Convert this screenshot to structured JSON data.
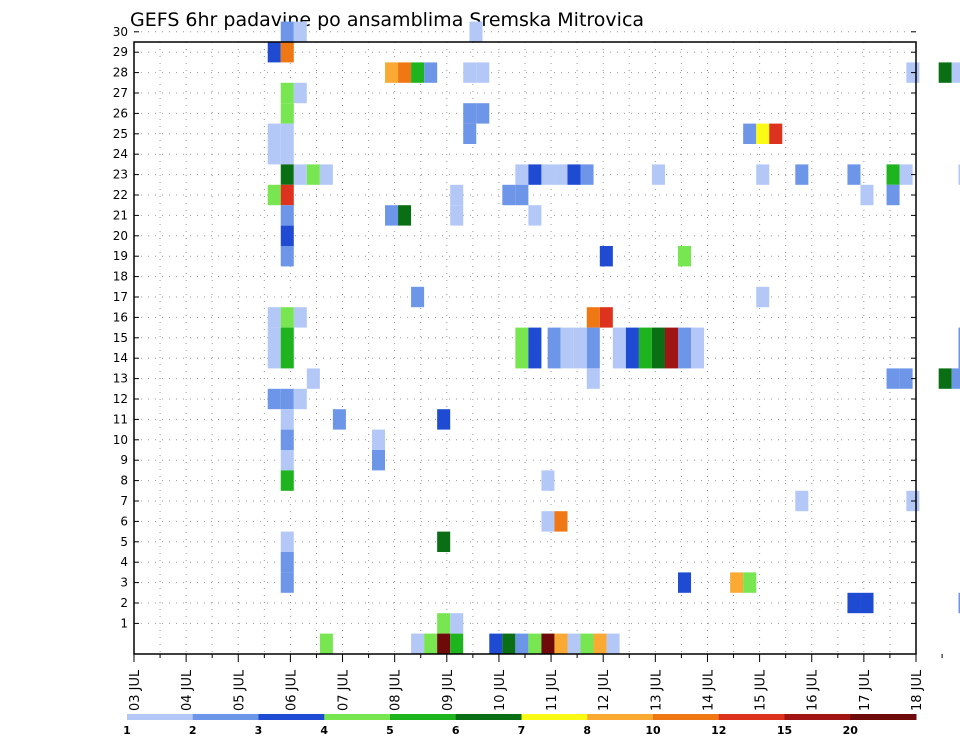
{
  "chart_data": {
    "type": "heatmap",
    "title": "GEFS 6hr padavine po ansamblima Sremska Mitrovica",
    "xlabel": "",
    "ylabel": "",
    "y_ticks": [
      "1",
      "2",
      "3",
      "4",
      "5",
      "6",
      "7",
      "8",
      "9",
      "10",
      "11",
      "12",
      "13",
      "14",
      "15",
      "16",
      "17",
      "18",
      "19",
      "20",
      "21",
      "22",
      "23",
      "24",
      "25",
      "26",
      "27",
      "28",
      "29",
      "30"
    ],
    "x_ticks": [
      "03 JUL",
      "04 JUL",
      "05 JUL",
      "06 JUL",
      "07 JUL",
      "08 JUL",
      "09 JUL",
      "10 JUL",
      "11 JUL",
      "12 JUL",
      "13 JUL",
      "14 JUL",
      "15 JUL",
      "16 JUL",
      "17 JUL",
      "18 JUL"
    ],
    "x_range_days": [
      0,
      15
    ],
    "y_range": [
      0,
      30
    ],
    "grid": true,
    "legend": {
      "placement": "bottom",
      "colors": [
        "#b4c8f8",
        "#6e96e8",
        "#1e4bd2",
        "#78e650",
        "#1eb41e",
        "#0a6e14",
        "#fafa14",
        "#faaa32",
        "#f07814",
        "#dc321e",
        "#a01414",
        "#6e0a0a"
      ],
      "labels": [
        "1",
        "2",
        "3",
        "4",
        "5",
        "6",
        "7",
        "8",
        "10",
        "12",
        "15",
        "20"
      ]
    },
    "points": [
      {
        "day": 2.94,
        "m": 30,
        "c": 2
      },
      {
        "day": 3.19,
        "m": 30,
        "c": 1
      },
      {
        "day": 6.56,
        "m": 30,
        "c": 1
      },
      {
        "day": 2.69,
        "m": 29,
        "c": 3
      },
      {
        "day": 2.94,
        "m": 29,
        "c": 9
      },
      {
        "day": 4.94,
        "m": 28,
        "c": 8
      },
      {
        "day": 5.19,
        "m": 28,
        "c": 9
      },
      {
        "day": 5.44,
        "m": 28,
        "c": 5
      },
      {
        "day": 5.69,
        "m": 28,
        "c": 2
      },
      {
        "day": 6.44,
        "m": 28,
        "c": 1
      },
      {
        "day": 6.69,
        "m": 28,
        "c": 1
      },
      {
        "day": 14.94,
        "m": 28,
        "c": 1
      },
      {
        "day": 15.56,
        "m": 28,
        "c": 6
      },
      {
        "day": 15.81,
        "m": 28,
        "c": 1
      },
      {
        "day": 2.94,
        "m": 27,
        "c": 4
      },
      {
        "day": 3.19,
        "m": 27,
        "c": 1
      },
      {
        "day": 2.94,
        "m": 26,
        "c": 4
      },
      {
        "day": 6.44,
        "m": 26,
        "c": 2
      },
      {
        "day": 6.69,
        "m": 26,
        "c": 2
      },
      {
        "day": 2.69,
        "m": 25,
        "c": 1
      },
      {
        "day": 2.94,
        "m": 25,
        "c": 1
      },
      {
        "day": 6.44,
        "m": 25,
        "c": 2
      },
      {
        "day": 11.81,
        "m": 25,
        "c": 2
      },
      {
        "day": 12.06,
        "m": 25,
        "c": 7
      },
      {
        "day": 12.31,
        "m": 25,
        "c": 10
      },
      {
        "day": 2.69,
        "m": 24,
        "c": 1
      },
      {
        "day": 2.94,
        "m": 24,
        "c": 1
      },
      {
        "day": 2.94,
        "m": 23,
        "c": 6
      },
      {
        "day": 3.19,
        "m": 23,
        "c": 1
      },
      {
        "day": 3.44,
        "m": 23,
        "c": 4
      },
      {
        "day": 3.69,
        "m": 23,
        "c": 1
      },
      {
        "day": 7.44,
        "m": 23,
        "c": 1
      },
      {
        "day": 7.69,
        "m": 23,
        "c": 3
      },
      {
        "day": 7.94,
        "m": 23,
        "c": 1
      },
      {
        "day": 8.19,
        "m": 23,
        "c": 1
      },
      {
        "day": 8.44,
        "m": 23,
        "c": 3
      },
      {
        "day": 8.69,
        "m": 23,
        "c": 2
      },
      {
        "day": 10.06,
        "m": 23,
        "c": 1
      },
      {
        "day": 12.06,
        "m": 23,
        "c": 1
      },
      {
        "day": 12.81,
        "m": 23,
        "c": 2
      },
      {
        "day": 13.81,
        "m": 23,
        "c": 2
      },
      {
        "day": 14.56,
        "m": 23,
        "c": 5
      },
      {
        "day": 14.81,
        "m": 23,
        "c": 1
      },
      {
        "day": 15.94,
        "m": 23,
        "c": 1
      },
      {
        "day": 2.69,
        "m": 22,
        "c": 4
      },
      {
        "day": 2.94,
        "m": 22,
        "c": 10
      },
      {
        "day": 6.19,
        "m": 22,
        "c": 1
      },
      {
        "day": 7.19,
        "m": 22,
        "c": 2
      },
      {
        "day": 7.44,
        "m": 22,
        "c": 2
      },
      {
        "day": 14.06,
        "m": 22,
        "c": 1
      },
      {
        "day": 14.56,
        "m": 22,
        "c": 2
      },
      {
        "day": 2.94,
        "m": 21,
        "c": 2
      },
      {
        "day": 4.94,
        "m": 21,
        "c": 2
      },
      {
        "day": 5.19,
        "m": 21,
        "c": 6
      },
      {
        "day": 6.19,
        "m": 21,
        "c": 1
      },
      {
        "day": 7.69,
        "m": 21,
        "c": 1
      },
      {
        "day": 2.94,
        "m": 20,
        "c": 3
      },
      {
        "day": 2.94,
        "m": 19,
        "c": 2
      },
      {
        "day": 9.06,
        "m": 19,
        "c": 3
      },
      {
        "day": 10.56,
        "m": 19,
        "c": 4
      },
      {
        "day": 5.44,
        "m": 17,
        "c": 2
      },
      {
        "day": 12.06,
        "m": 17,
        "c": 1
      },
      {
        "day": 2.69,
        "m": 16,
        "c": 1
      },
      {
        "day": 2.94,
        "m": 16,
        "c": 4
      },
      {
        "day": 3.19,
        "m": 16,
        "c": 1
      },
      {
        "day": 8.81,
        "m": 16,
        "c": 9
      },
      {
        "day": 9.06,
        "m": 16,
        "c": 10
      },
      {
        "day": 2.69,
        "m": 15,
        "c": 1
      },
      {
        "day": 2.94,
        "m": 15,
        "c": 5
      },
      {
        "day": 7.44,
        "m": 15,
        "c": 4
      },
      {
        "day": 7.69,
        "m": 15,
        "c": 3
      },
      {
        "day": 8.06,
        "m": 15,
        "c": 2
      },
      {
        "day": 8.31,
        "m": 15,
        "c": 1
      },
      {
        "day": 8.56,
        "m": 15,
        "c": 1
      },
      {
        "day": 8.81,
        "m": 15,
        "c": 2
      },
      {
        "day": 9.31,
        "m": 15,
        "c": 1
      },
      {
        "day": 9.56,
        "m": 15,
        "c": 3
      },
      {
        "day": 9.81,
        "m": 15,
        "c": 5
      },
      {
        "day": 10.06,
        "m": 15,
        "c": 6
      },
      {
        "day": 10.31,
        "m": 15,
        "c": 11
      },
      {
        "day": 10.56,
        "m": 15,
        "c": 2
      },
      {
        "day": 10.81,
        "m": 15,
        "c": 1
      },
      {
        "day": 15.94,
        "m": 15,
        "c": 2
      },
      {
        "day": 2.69,
        "m": 14,
        "c": 1
      },
      {
        "day": 2.94,
        "m": 14,
        "c": 5
      },
      {
        "day": 7.44,
        "m": 14,
        "c": 4
      },
      {
        "day": 7.69,
        "m": 14,
        "c": 3
      },
      {
        "day": 8.06,
        "m": 14,
        "c": 2
      },
      {
        "day": 8.31,
        "m": 14,
        "c": 1
      },
      {
        "day": 8.56,
        "m": 14,
        "c": 1
      },
      {
        "day": 8.81,
        "m": 14,
        "c": 2
      },
      {
        "day": 9.31,
        "m": 14,
        "c": 1
      },
      {
        "day": 9.56,
        "m": 14,
        "c": 3
      },
      {
        "day": 9.81,
        "m": 14,
        "c": 5
      },
      {
        "day": 10.06,
        "m": 14,
        "c": 6
      },
      {
        "day": 10.31,
        "m": 14,
        "c": 11
      },
      {
        "day": 10.56,
        "m": 14,
        "c": 2
      },
      {
        "day": 10.81,
        "m": 14,
        "c": 1
      },
      {
        "day": 15.94,
        "m": 14,
        "c": 2
      },
      {
        "day": 3.44,
        "m": 13,
        "c": 1
      },
      {
        "day": 8.81,
        "m": 13,
        "c": 1
      },
      {
        "day": 14.56,
        "m": 13,
        "c": 2
      },
      {
        "day": 14.81,
        "m": 13,
        "c": 2
      },
      {
        "day": 15.56,
        "m": 13,
        "c": 6
      },
      {
        "day": 15.81,
        "m": 13,
        "c": 2
      },
      {
        "day": 2.69,
        "m": 12,
        "c": 2
      },
      {
        "day": 2.94,
        "m": 12,
        "c": 2
      },
      {
        "day": 3.19,
        "m": 12,
        "c": 1
      },
      {
        "day": 2.94,
        "m": 11,
        "c": 1
      },
      {
        "day": 3.94,
        "m": 11,
        "c": 2
      },
      {
        "day": 5.94,
        "m": 11,
        "c": 3
      },
      {
        "day": 2.94,
        "m": 10,
        "c": 2
      },
      {
        "day": 4.69,
        "m": 10,
        "c": 1
      },
      {
        "day": 2.94,
        "m": 9,
        "c": 1
      },
      {
        "day": 4.69,
        "m": 9,
        "c": 2
      },
      {
        "day": 2.94,
        "m": 8,
        "c": 5
      },
      {
        "day": 7.94,
        "m": 8,
        "c": 1
      },
      {
        "day": 12.81,
        "m": 7,
        "c": 1
      },
      {
        "day": 14.94,
        "m": 7,
        "c": 1
      },
      {
        "day": 7.94,
        "m": 6,
        "c": 1
      },
      {
        "day": 8.19,
        "m": 6,
        "c": 9
      },
      {
        "day": 2.94,
        "m": 5,
        "c": 1
      },
      {
        "day": 5.94,
        "m": 5,
        "c": 6
      },
      {
        "day": 2.94,
        "m": 4,
        "c": 2
      },
      {
        "day": 2.94,
        "m": 3,
        "c": 2
      },
      {
        "day": 10.56,
        "m": 3,
        "c": 3
      },
      {
        "day": 11.56,
        "m": 3,
        "c": 8
      },
      {
        "day": 11.81,
        "m": 3,
        "c": 4
      },
      {
        "day": 13.81,
        "m": 2,
        "c": 3
      },
      {
        "day": 14.06,
        "m": 2,
        "c": 3
      },
      {
        "day": 15.94,
        "m": 2,
        "c": 2
      },
      {
        "day": 5.94,
        "m": 1,
        "c": 4
      },
      {
        "day": 6.19,
        "m": 1,
        "c": 1
      },
      {
        "day": 3.69,
        "m": 0,
        "c": 4
      },
      {
        "day": 5.44,
        "m": 0,
        "c": 1
      },
      {
        "day": 5.69,
        "m": 0,
        "c": 4
      },
      {
        "day": 5.94,
        "m": 0,
        "c": 12
      },
      {
        "day": 6.19,
        "m": 0,
        "c": 5
      },
      {
        "day": 6.94,
        "m": 0,
        "c": 3
      },
      {
        "day": 7.19,
        "m": 0,
        "c": 6
      },
      {
        "day": 7.44,
        "m": 0,
        "c": 2
      },
      {
        "day": 7.69,
        "m": 0,
        "c": 4
      },
      {
        "day": 7.94,
        "m": 0,
        "c": 12
      },
      {
        "day": 8.19,
        "m": 0,
        "c": 8
      },
      {
        "day": 8.44,
        "m": 0,
        "c": 1
      },
      {
        "day": 8.69,
        "m": 0,
        "c": 4
      },
      {
        "day": 8.94,
        "m": 0,
        "c": 8
      },
      {
        "day": 9.19,
        "m": 0,
        "c": 1
      }
    ]
  }
}
